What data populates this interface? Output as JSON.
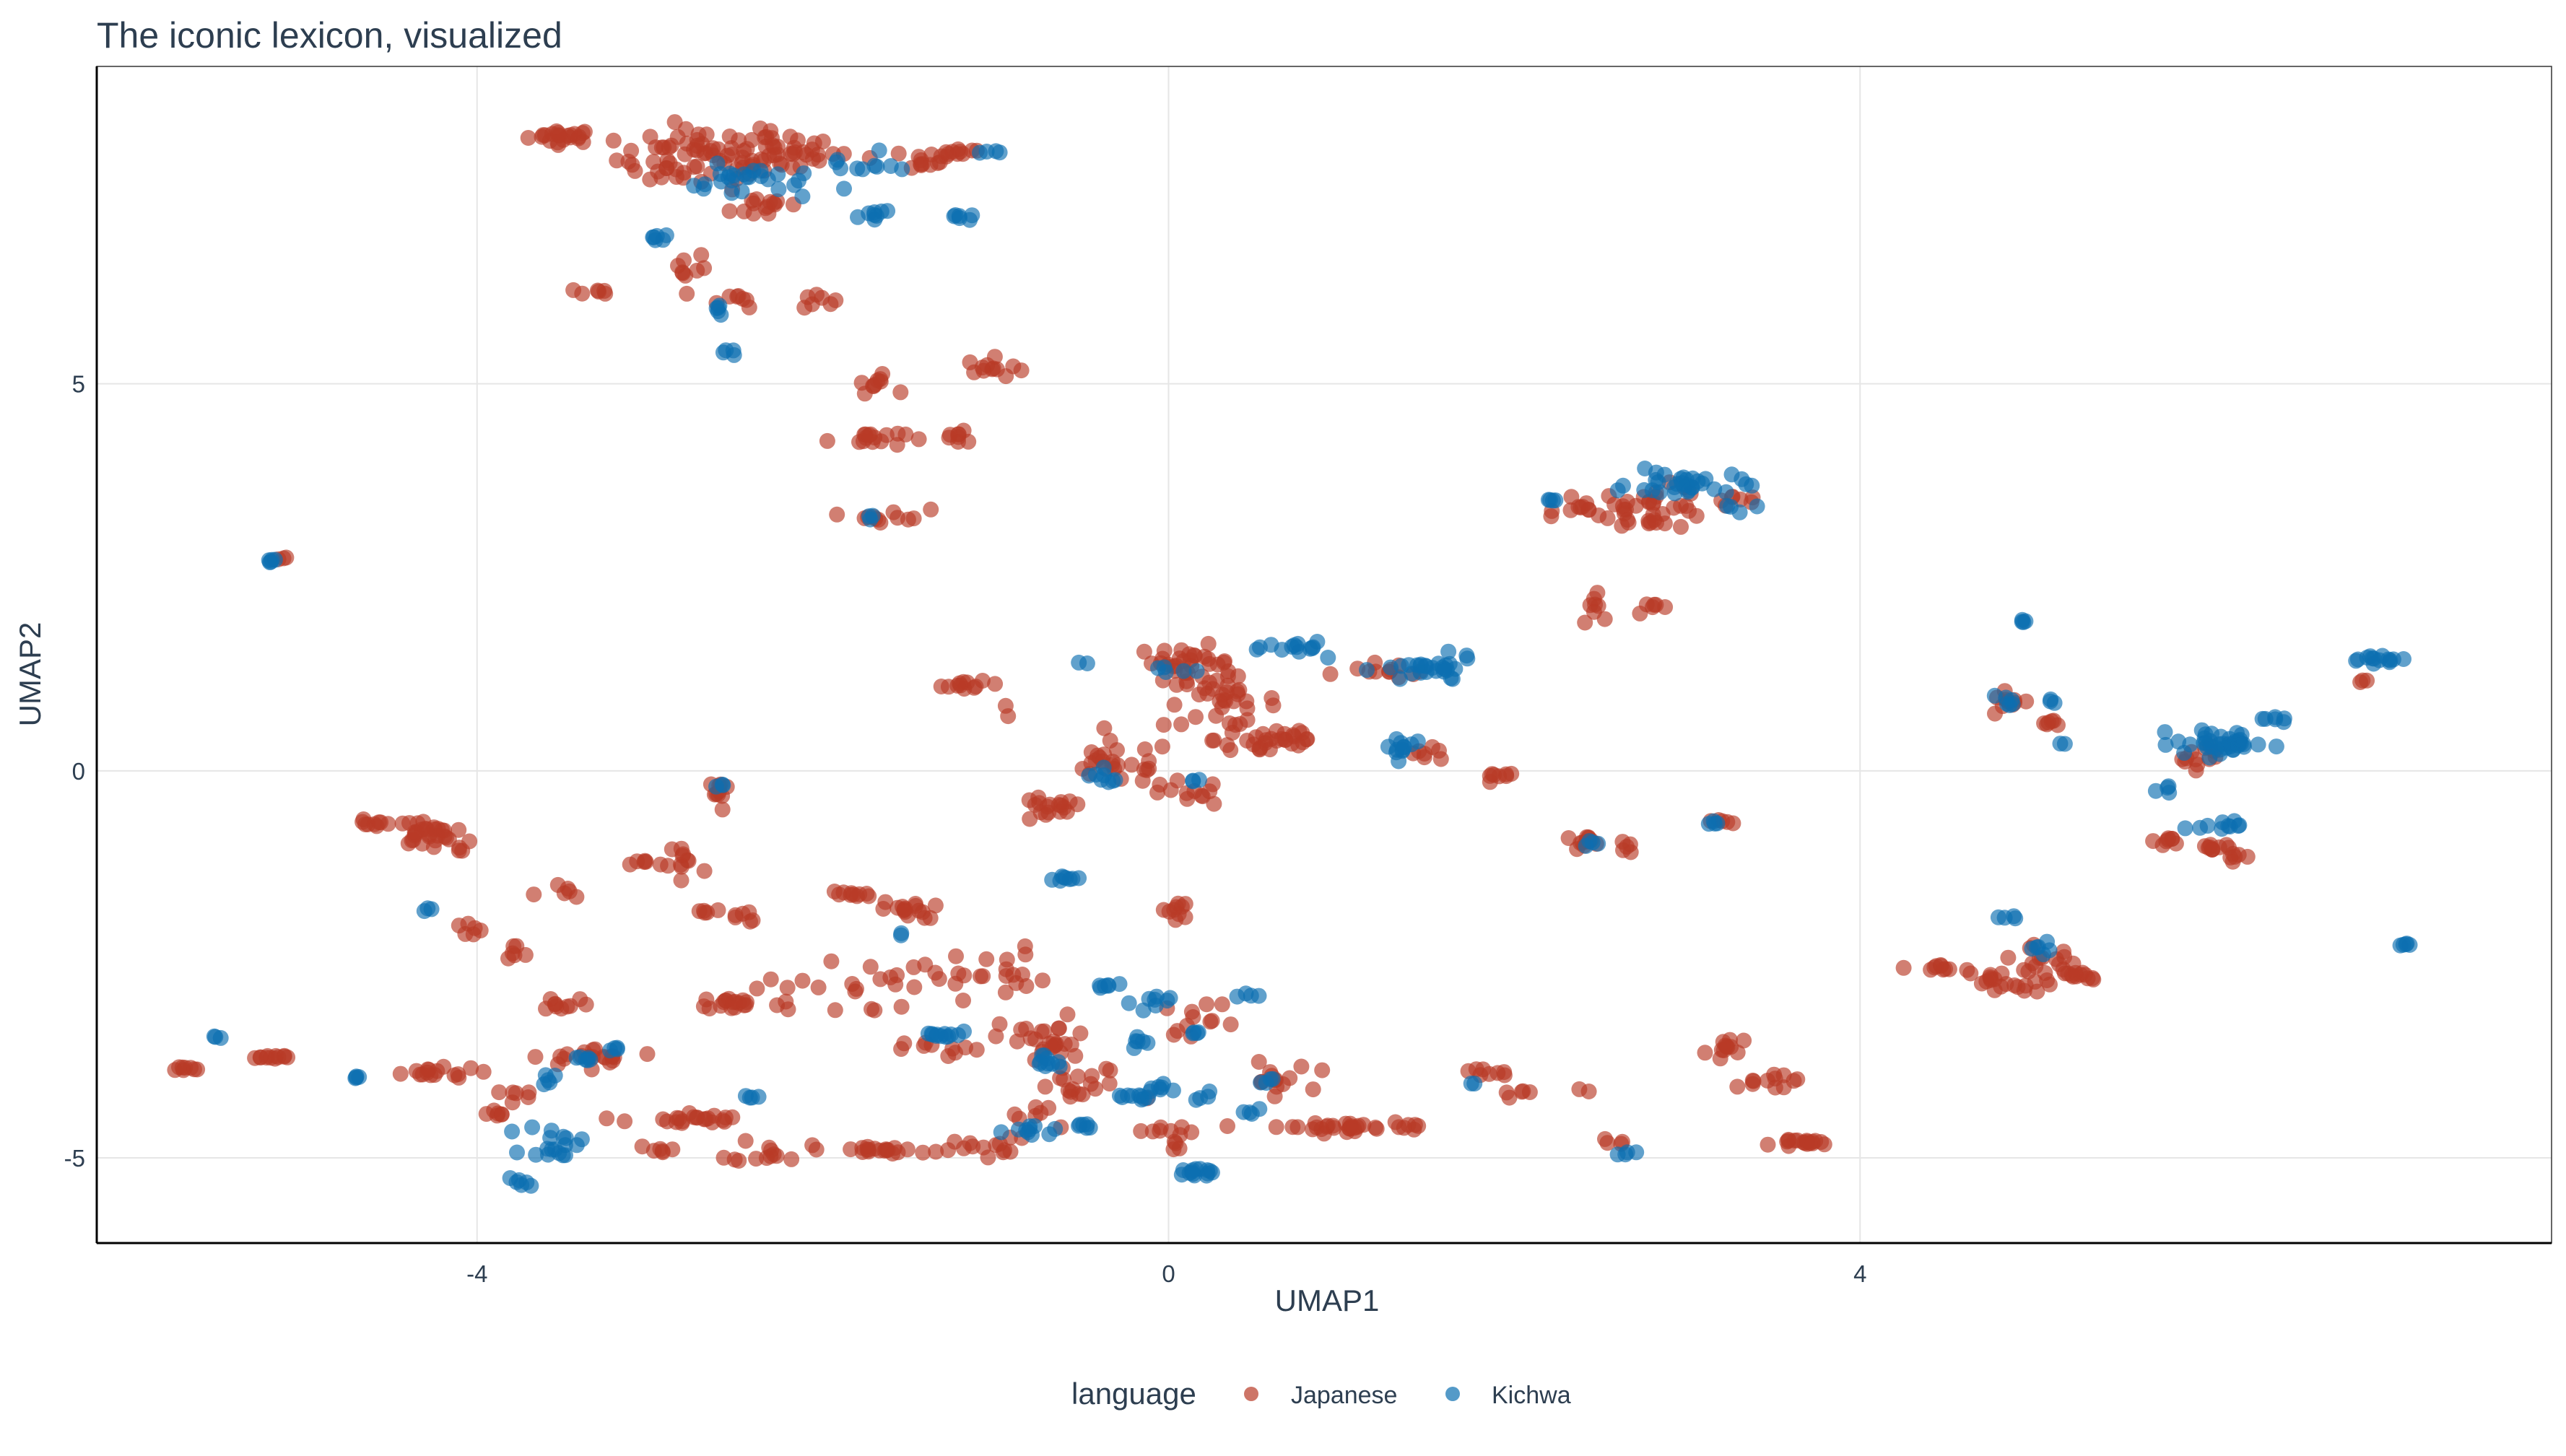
{
  "colors": {
    "japanese": "#b83a27",
    "kichwa": "#0c6fb0",
    "grid": "#e6e6e6",
    "axis": "#000000",
    "title": "#2d3e50",
    "text": "#2d3e50"
  },
  "chart_data": {
    "type": "scatter",
    "title": "The iconic lexicon, visualized",
    "xlabel": "UMAP1",
    "ylabel": "UMAP2",
    "xlim": [
      -6.2,
      8.0
    ],
    "ylim": [
      -6.1,
      9.1
    ],
    "x_ticks": [
      -4,
      0,
      4
    ],
    "x_tick_labels": [
      "-4",
      "0",
      "4"
    ],
    "y_ticks": [
      -5,
      0,
      5
    ],
    "y_tick_labels": [
      "-5",
      "0",
      "5"
    ],
    "grid": true,
    "legend": {
      "title": "language",
      "position": "bottom",
      "entries": [
        "Japanese",
        "Kichwa"
      ]
    },
    "series": [
      {
        "name": "Japanese",
        "color": "#b83a27",
        "clusters": [
          [
            -3.5,
            8.2,
            0.18,
            0.08,
            22
          ],
          [
            -2.7,
            7.9,
            0.45,
            0.35,
            70
          ],
          [
            -2.2,
            8.0,
            0.25,
            0.25,
            30
          ],
          [
            -1.5,
            7.9,
            0.3,
            0.12,
            16
          ],
          [
            -1.2,
            8.0,
            0.15,
            0.05,
            8
          ],
          [
            -2.3,
            7.3,
            0.2,
            0.15,
            14
          ],
          [
            -3.3,
            6.2,
            0.15,
            0.05,
            6
          ],
          [
            -2.8,
            6.5,
            0.12,
            0.2,
            8
          ],
          [
            -2.5,
            6.1,
            0.15,
            0.1,
            8
          ],
          [
            -2.05,
            6.1,
            0.1,
            0.1,
            7
          ],
          [
            -1.7,
            5.0,
            0.1,
            0.1,
            10
          ],
          [
            -1.0,
            5.2,
            0.15,
            0.12,
            12
          ],
          [
            -1.75,
            4.3,
            0.2,
            0.1,
            16
          ],
          [
            -1.2,
            4.3,
            0.15,
            0.1,
            8
          ],
          [
            -1.6,
            3.3,
            0.2,
            0.08,
            12
          ],
          [
            -5.15,
            2.75,
            0.05,
            0.03,
            3
          ],
          [
            -1.15,
            1.1,
            0.15,
            0.05,
            12
          ],
          [
            -0.9,
            0.8,
            0.05,
            0.05,
            2
          ],
          [
            0.1,
            1.4,
            0.25,
            0.2,
            30
          ],
          [
            0.3,
            0.9,
            0.3,
            0.3,
            36
          ],
          [
            0.6,
            0.4,
            0.3,
            0.2,
            30
          ],
          [
            -0.3,
            0.1,
            0.3,
            0.25,
            26
          ],
          [
            -0.7,
            -0.5,
            0.2,
            0.15,
            18
          ],
          [
            0.1,
            -0.3,
            0.2,
            0.15,
            12
          ],
          [
            1.3,
            1.3,
            0.25,
            0.1,
            12
          ],
          [
            1.9,
            -0.1,
            0.1,
            0.08,
            8
          ],
          [
            1.5,
            0.2,
            0.15,
            0.08,
            7
          ],
          [
            2.4,
            3.4,
            0.15,
            0.08,
            8
          ],
          [
            2.8,
            3.4,
            0.3,
            0.25,
            40
          ],
          [
            2.5,
            2.2,
            0.1,
            0.25,
            8
          ],
          [
            2.8,
            2.1,
            0.1,
            0.06,
            6
          ],
          [
            3.3,
            3.5,
            0.1,
            0.1,
            6
          ],
          [
            2.4,
            -0.9,
            0.12,
            0.05,
            12
          ],
          [
            2.65,
            -0.95,
            0.05,
            0.1,
            5
          ],
          [
            3.2,
            -0.65,
            0.05,
            0.03,
            5
          ],
          [
            -4.6,
            -0.7,
            0.12,
            0.06,
            10
          ],
          [
            -4.3,
            -0.8,
            0.15,
            0.15,
            28
          ],
          [
            -4.1,
            -1.0,
            0.05,
            0.08,
            4
          ],
          [
            -4.05,
            -2.05,
            0.1,
            0.1,
            6
          ],
          [
            -3.8,
            -2.4,
            0.1,
            0.15,
            6
          ],
          [
            -3.5,
            -1.6,
            0.15,
            0.15,
            6
          ],
          [
            -3.0,
            -1.2,
            0.1,
            0.05,
            7
          ],
          [
            -2.6,
            -0.3,
            0.05,
            0.2,
            10
          ],
          [
            -2.8,
            -1.2,
            0.12,
            0.4,
            10
          ],
          [
            -2.7,
            -1.8,
            0.1,
            0.1,
            5
          ],
          [
            -2.45,
            -1.9,
            0.1,
            0.1,
            6
          ],
          [
            -2.5,
            -3.0,
            0.2,
            0.08,
            18
          ],
          [
            -3.5,
            -3.0,
            0.15,
            0.1,
            10
          ],
          [
            -3.3,
            -3.7,
            0.35,
            0.1,
            20
          ],
          [
            -2.85,
            -4.5,
            0.25,
            0.08,
            18
          ],
          [
            -2.55,
            -4.5,
            0.05,
            0.05,
            4
          ],
          [
            -2.3,
            -4.9,
            0.2,
            0.15,
            14
          ],
          [
            -3.7,
            -4.2,
            0.12,
            0.08,
            6
          ],
          [
            -3.9,
            -4.4,
            0.08,
            0.05,
            6
          ],
          [
            -5.7,
            -3.85,
            0.08,
            0.03,
            8
          ],
          [
            -5.2,
            -3.7,
            0.15,
            0.03,
            12
          ],
          [
            -4.3,
            -3.9,
            0.3,
            0.06,
            16
          ],
          [
            -3.0,
            -4.9,
            0.1,
            0.05,
            6
          ],
          [
            -1.85,
            -1.6,
            0.12,
            0.05,
            10
          ],
          [
            -1.5,
            -1.8,
            0.15,
            0.1,
            16
          ],
          [
            -1.9,
            -2.8,
            0.45,
            0.35,
            22
          ],
          [
            -1.1,
            -2.6,
            0.35,
            0.3,
            22
          ],
          [
            -0.7,
            -3.5,
            0.25,
            0.3,
            26
          ],
          [
            -1.3,
            -3.6,
            0.2,
            0.1,
            10
          ],
          [
            -0.5,
            -4.1,
            0.3,
            0.25,
            18
          ],
          [
            -1.6,
            -4.9,
            0.3,
            0.05,
            18
          ],
          [
            -1.1,
            -4.85,
            0.2,
            0.1,
            14
          ],
          [
            -0.8,
            -4.5,
            0.15,
            0.2,
            8
          ],
          [
            0.05,
            -1.8,
            0.08,
            0.15,
            10
          ],
          [
            0.2,
            -3.2,
            0.2,
            0.2,
            12
          ],
          [
            0.0,
            -4.7,
            0.15,
            0.2,
            12
          ],
          [
            0.6,
            -4.0,
            0.2,
            0.2,
            14
          ],
          [
            1.0,
            -4.6,
            0.4,
            0.05,
            28
          ],
          [
            1.4,
            -4.6,
            0.1,
            0.05,
            6
          ],
          [
            1.8,
            -3.9,
            0.15,
            0.05,
            8
          ],
          [
            2.0,
            -4.15,
            0.1,
            0.05,
            5
          ],
          [
            2.4,
            -4.1,
            0.05,
            0.05,
            2
          ],
          [
            2.6,
            -4.8,
            0.08,
            0.05,
            4
          ],
          [
            3.25,
            -3.6,
            0.12,
            0.15,
            12
          ],
          [
            3.6,
            -4.0,
            0.15,
            0.1,
            6
          ],
          [
            3.7,
            -4.8,
            0.15,
            0.03,
            18
          ],
          [
            4.5,
            -2.55,
            0.12,
            0.05,
            10
          ],
          [
            4.75,
            -2.7,
            0.1,
            0.12,
            12
          ],
          [
            5.05,
            -2.55,
            0.2,
            0.25,
            26
          ],
          [
            5.3,
            -2.65,
            0.1,
            0.05,
            10
          ],
          [
            4.85,
            0.9,
            0.1,
            0.1,
            10
          ],
          [
            5.1,
            0.6,
            0.06,
            0.08,
            6
          ],
          [
            5.8,
            -0.9,
            0.08,
            0.05,
            8
          ],
          [
            6.05,
            -1.0,
            0.08,
            0.06,
            10
          ],
          [
            6.15,
            -1.1,
            0.06,
            0.06,
            6
          ],
          [
            5.95,
            0.2,
            0.12,
            0.15,
            12
          ],
          [
            6.9,
            1.15,
            0.05,
            0.03,
            3
          ],
          [
            3.4,
            -4.0,
            0.1,
            0.12,
            6
          ]
        ]
      },
      {
        "name": "Kichwa",
        "color": "#0c6fb0",
        "clusters": [
          [
            -2.4,
            7.6,
            0.35,
            0.2,
            26
          ],
          [
            -1.8,
            7.8,
            0.2,
            0.15,
            10
          ],
          [
            -1.7,
            7.2,
            0.15,
            0.06,
            8
          ],
          [
            -1.2,
            7.15,
            0.1,
            0.05,
            6
          ],
          [
            -1.05,
            8.0,
            0.08,
            0.03,
            4
          ],
          [
            -2.95,
            6.9,
            0.06,
            0.1,
            6
          ],
          [
            -2.6,
            6.0,
            0.05,
            0.08,
            5
          ],
          [
            -2.55,
            5.4,
            0.04,
            0.05,
            4
          ],
          [
            -1.7,
            3.25,
            0.05,
            0.03,
            3
          ],
          [
            -5.2,
            2.7,
            0.05,
            0.03,
            5
          ],
          [
            0.8,
            1.6,
            0.2,
            0.1,
            14
          ],
          [
            1.5,
            1.3,
            0.25,
            0.15,
            28
          ],
          [
            1.35,
            0.3,
            0.1,
            0.15,
            12
          ],
          [
            0.0,
            1.3,
            0.1,
            0.05,
            5
          ],
          [
            -0.5,
            1.4,
            0.03,
            0.03,
            2
          ],
          [
            -0.4,
            -0.1,
            0.15,
            0.1,
            8
          ],
          [
            -0.6,
            -1.4,
            0.1,
            0.05,
            8
          ],
          [
            3.0,
            3.7,
            0.3,
            0.15,
            32
          ],
          [
            2.2,
            3.5,
            0.05,
            0.03,
            4
          ],
          [
            3.3,
            3.4,
            0.1,
            0.05,
            4
          ],
          [
            2.45,
            -0.95,
            0.06,
            0.03,
            4
          ],
          [
            3.15,
            -0.65,
            0.05,
            0.03,
            4
          ],
          [
            -4.3,
            -1.8,
            0.03,
            0.03,
            3
          ],
          [
            -2.6,
            -0.2,
            0.03,
            0.05,
            3
          ],
          [
            -5.5,
            -3.45,
            0.03,
            0.02,
            3
          ],
          [
            -4.7,
            -3.95,
            0.05,
            0.03,
            4
          ],
          [
            -3.35,
            -3.7,
            0.1,
            0.05,
            6
          ],
          [
            -3.2,
            -3.6,
            0.05,
            0.03,
            4
          ],
          [
            -3.55,
            -4.8,
            0.15,
            0.2,
            18
          ],
          [
            -3.75,
            -5.3,
            0.06,
            0.06,
            6
          ],
          [
            -3.6,
            -4.0,
            0.05,
            0.08,
            5
          ],
          [
            -2.4,
            -4.2,
            0.05,
            0.05,
            4
          ],
          [
            -1.3,
            -3.4,
            0.1,
            0.05,
            12
          ],
          [
            -1.55,
            -2.1,
            0.03,
            0.03,
            2
          ],
          [
            -0.7,
            -3.8,
            0.1,
            0.15,
            10
          ],
          [
            -0.8,
            -4.6,
            0.12,
            0.08,
            10
          ],
          [
            -0.5,
            -4.6,
            0.06,
            0.05,
            6
          ],
          [
            -0.4,
            -2.8,
            0.1,
            0.08,
            6
          ],
          [
            -0.1,
            -3.0,
            0.1,
            0.1,
            8
          ],
          [
            -0.2,
            -3.5,
            0.05,
            0.1,
            6
          ],
          [
            -0.2,
            -4.2,
            0.15,
            0.08,
            10
          ],
          [
            -0.05,
            -4.1,
            0.05,
            0.05,
            6
          ],
          [
            0.2,
            -4.2,
            0.05,
            0.05,
            4
          ],
          [
            0.15,
            -5.2,
            0.1,
            0.06,
            14
          ],
          [
            0.15,
            -3.4,
            0.04,
            0.05,
            4
          ],
          [
            0.45,
            -2.9,
            0.05,
            0.03,
            4
          ],
          [
            0.55,
            -4.0,
            0.05,
            0.06,
            4
          ],
          [
            0.5,
            -4.4,
            0.05,
            0.05,
            4
          ],
          [
            2.65,
            -4.95,
            0.05,
            0.02,
            4
          ],
          [
            1.75,
            -4.05,
            0.03,
            0.02,
            2
          ],
          [
            4.85,
            -1.9,
            0.05,
            0.03,
            4
          ],
          [
            5.05,
            -2.3,
            0.1,
            0.1,
            6
          ],
          [
            4.85,
            0.9,
            0.05,
            0.08,
            6
          ],
          [
            4.95,
            1.95,
            0.02,
            0.05,
            4
          ],
          [
            5.1,
            0.9,
            0.03,
            0.03,
            3
          ],
          [
            5.15,
            0.35,
            0.03,
            0.03,
            2
          ],
          [
            6.1,
            0.35,
            0.25,
            0.15,
            40
          ],
          [
            5.75,
            -0.2,
            0.05,
            0.08,
            4
          ],
          [
            6.1,
            -0.7,
            0.12,
            0.05,
            10
          ],
          [
            6.4,
            0.65,
            0.08,
            0.05,
            6
          ],
          [
            7.0,
            1.45,
            0.15,
            0.05,
            14
          ],
          [
            7.15,
            -2.25,
            0.03,
            0.03,
            5
          ],
          [
            0.15,
            -0.1,
            0.05,
            0.05,
            3
          ]
        ]
      }
    ]
  }
}
